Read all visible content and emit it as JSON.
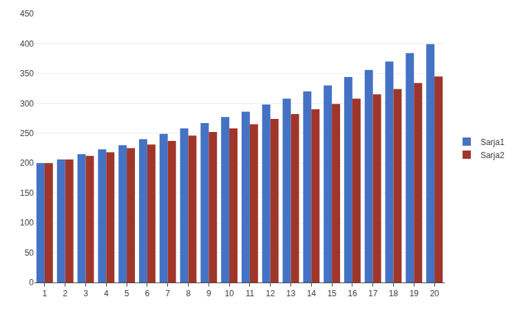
{
  "chart_data": {
    "type": "bar",
    "categories": [
      1,
      2,
      3,
      4,
      5,
      6,
      7,
      8,
      9,
      10,
      11,
      12,
      13,
      14,
      15,
      16,
      17,
      18,
      19,
      20
    ],
    "series": [
      {
        "name": "Sarja1",
        "color": "#4472C4",
        "values": [
          200,
          206,
          215,
          223,
          230,
          240,
          249,
          258,
          267,
          277,
          286,
          298,
          308,
          320,
          330,
          344,
          356,
          370,
          384,
          399
        ]
      },
      {
        "name": "Sarja2",
        "color": "#A0362A",
        "values": [
          200,
          206,
          212,
          218,
          225,
          231,
          237,
          246,
          252,
          258,
          265,
          274,
          282,
          290,
          299,
          308,
          315,
          324,
          334,
          345
        ]
      }
    ],
    "ylim": [
      0,
      450
    ],
    "yticks": [
      0,
      50,
      100,
      150,
      200,
      250,
      300,
      350,
      400,
      450
    ],
    "grid": true,
    "legend": "right"
  }
}
